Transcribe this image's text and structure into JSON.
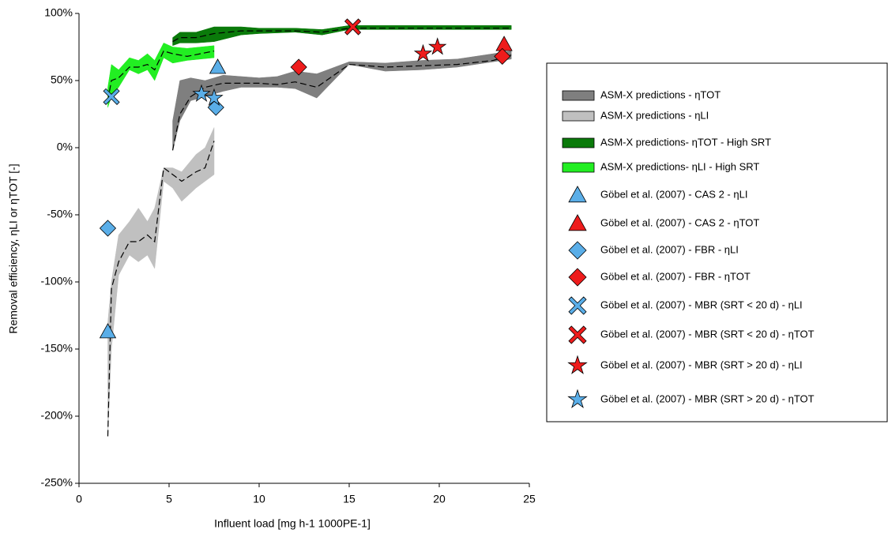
{
  "chart_data": {
    "type": "combo",
    "x_label": "Influent load [mg h-1 1000PE-1]",
    "y_label": "Removal efficiency, ηLI or ηTOT  [-]",
    "xlim": [
      0,
      25
    ],
    "xticks": [
      0,
      5,
      10,
      15,
      20,
      25
    ],
    "ylim": [
      -250,
      100
    ],
    "yticks": [
      {
        "value": -250,
        "label": "-250%"
      },
      {
        "value": -200,
        "label": "-200%"
      },
      {
        "value": -150,
        "label": "-150%"
      },
      {
        "value": -100,
        "label": "-100%"
      },
      {
        "value": -50,
        "label": "-50%"
      },
      {
        "value": 0,
        "label": "0%"
      },
      {
        "value": 50,
        "label": "50%"
      },
      {
        "value": 100,
        "label": "100%"
      }
    ],
    "series": [
      {
        "name": "ASM-X predictions - ηTOT",
        "type": "band",
        "color": "#7f7f7f",
        "x": [
          5.2,
          5.6,
          6.2,
          7,
          8,
          9,
          10,
          11,
          12,
          13.2,
          15,
          17,
          19,
          21,
          23,
          24
        ],
        "lower": [
          -2,
          20,
          35,
          38,
          42,
          45,
          45,
          45,
          44,
          37,
          62,
          57,
          58,
          60,
          64,
          66
        ],
        "upper": [
          20,
          50,
          52,
          50,
          54,
          53,
          52,
          53,
          57,
          55,
          64,
          63,
          65,
          66,
          70,
          72
        ],
        "median": [
          -2,
          25,
          38,
          45,
          48,
          48,
          48,
          47,
          49,
          45,
          62,
          60,
          61,
          62,
          65,
          69
        ]
      },
      {
        "name": "ASM-X predictions - ηLI",
        "type": "band",
        "color": "#c0c0c0",
        "x": [
          1.6,
          1.8,
          2.2,
          2.8,
          3.3,
          3.8,
          4.2,
          4.7,
          5.2,
          5.7,
          6.5,
          7,
          7.5
        ],
        "lower": [
          -215,
          -150,
          -95,
          -80,
          -85,
          -80,
          -90,
          -25,
          -30,
          -40,
          -30,
          -25,
          -20
        ],
        "upper": [
          -130,
          -100,
          -65,
          -55,
          -45,
          -55,
          -45,
          -15,
          -15,
          -18,
          -5,
          0,
          15
        ],
        "median": [
          -215,
          -105,
          -85,
          -70,
          -70,
          -65,
          -70,
          -15,
          -20,
          -25,
          -18,
          -15,
          5
        ]
      },
      {
        "name": "ASM-X predictions- ηTOT  - High SRT",
        "type": "band",
        "color": "#0a7a0a",
        "x": [
          5.2,
          5.6,
          6.5,
          7.5,
          9,
          10,
          12,
          13.5,
          15,
          20,
          24
        ],
        "lower": [
          76,
          78,
          78,
          79,
          84,
          85,
          86,
          84,
          88,
          88,
          88
        ],
        "upper": [
          82,
          86,
          86,
          90,
          90,
          89,
          89,
          88,
          91,
          91,
          91
        ],
        "median": [
          79,
          82,
          82,
          85,
          87,
          87,
          87,
          86,
          89,
          89,
          89
        ]
      },
      {
        "name": "ASM-X predictions- ηLI - High SRT",
        "type": "band",
        "color": "#22ee22",
        "x": [
          1.6,
          1.8,
          2.2,
          2.8,
          3.3,
          3.8,
          4.2,
          4.7,
          5.2,
          6,
          7.5
        ],
        "lower": [
          30,
          38,
          45,
          58,
          55,
          58,
          50,
          67,
          63,
          65,
          67
        ],
        "upper": [
          45,
          62,
          58,
          67,
          65,
          70,
          65,
          78,
          75,
          74,
          76
        ],
        "median": [
          35,
          50,
          52,
          60,
          60,
          62,
          58,
          72,
          70,
          68,
          72
        ]
      },
      {
        "name": "Göbel et al. (2007) - CAS 2 - ηLI",
        "type": "scatter",
        "marker": "triangle",
        "color": "#5aaee8",
        "x": [
          1.6,
          7.7
        ],
        "values": [
          -137,
          60
        ]
      },
      {
        "name": "Göbel et al. (2007) - CAS 2 - ηTOT",
        "type": "scatter",
        "marker": "triangle",
        "color": "#ee1c1c",
        "x": [
          23.6
        ],
        "values": [
          77
        ]
      },
      {
        "name": "Göbel et al. (2007) - FBR - ηLI",
        "type": "scatter",
        "marker": "diamond",
        "color": "#5aaee8",
        "x": [
          1.6,
          7.6
        ],
        "values": [
          -60,
          30
        ]
      },
      {
        "name": "Göbel et al. (2007) - FBR - ηTOT",
        "type": "scatter",
        "marker": "diamond",
        "color": "#ee1c1c",
        "x": [
          12.2,
          23.5
        ],
        "values": [
          60,
          68
        ]
      },
      {
        "name": "Göbel et al. (2007) - MBR (SRT < 20 d) - ηLI",
        "type": "scatter",
        "marker": "x",
        "color": "#5aaee8",
        "x": [
          1.8
        ],
        "values": [
          38
        ]
      },
      {
        "name": "Göbel et al. (2007) - MBR (SRT < 20 d) - ηTOT",
        "type": "scatter",
        "marker": "x",
        "color": "#ee1c1c",
        "x": [
          15.2
        ],
        "values": [
          90
        ]
      },
      {
        "name": "Göbel et al. (2007) - MBR (SRT > 20 d) - ηLI",
        "type": "scatter",
        "marker": "star",
        "color": "#ee1c1c",
        "x": [
          19.1,
          19.9
        ],
        "values": [
          70,
          75
        ]
      },
      {
        "name": "Göbel et al. (2007) - MBR (SRT > 20 d) - ηTOT",
        "type": "scatter",
        "marker": "star",
        "color": "#5aaee8",
        "x": [
          6.8,
          7.5
        ],
        "values": [
          40,
          37
        ]
      }
    ]
  }
}
